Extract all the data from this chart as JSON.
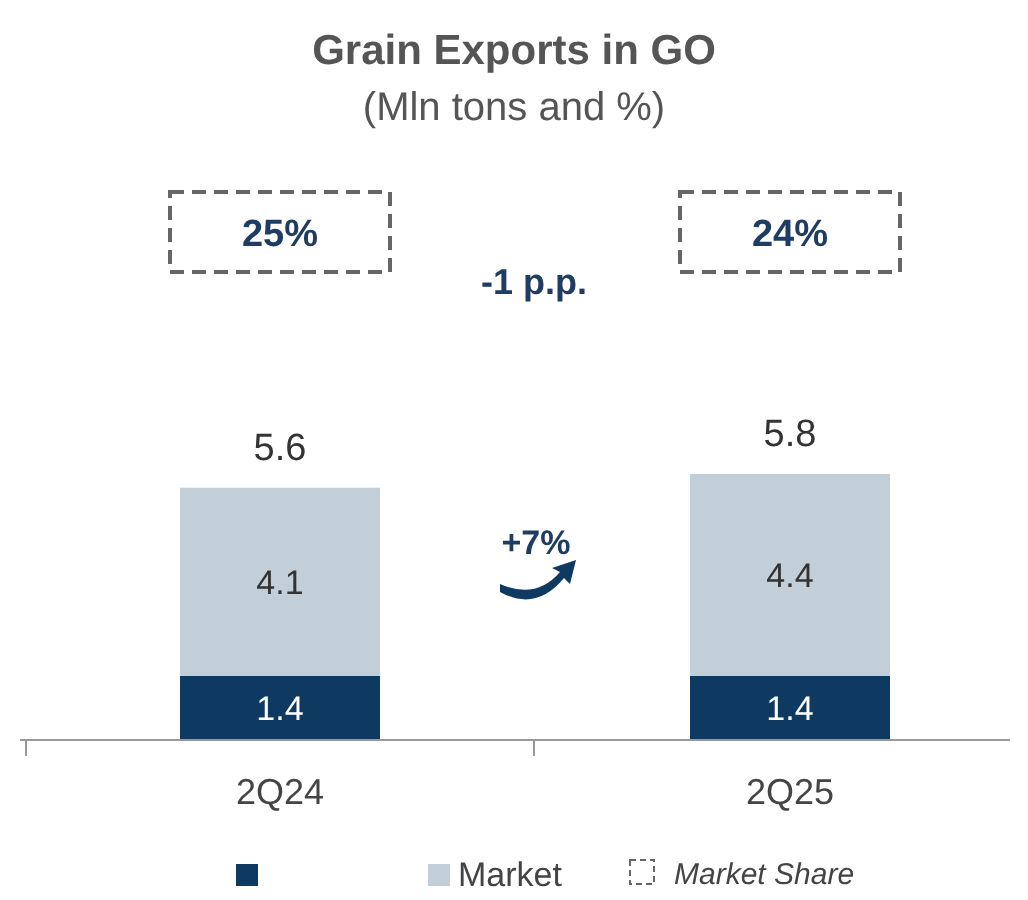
{
  "chart_data": {
    "type": "bar",
    "title": "Grain Exports in GO",
    "subtitle": "(Mln tons and %)",
    "categories": [
      "2Q24",
      "2Q25"
    ],
    "stacked": true,
    "data_labels": true,
    "legend": "bottom",
    "series": [
      {
        "color": "#0e3a62",
        "values": [
          1.4,
          1.4
        ]
      },
      {
        "name": "Market",
        "color": "#c2ced8",
        "values": [
          4.1,
          4.4
        ]
      }
    ],
    "totals": [
      "5.6",
      "5.8"
    ],
    "annotations": [
      "25%",
      "24%",
      "-1 p.p.",
      "+7%",
      "Market Share"
    ]
  }
}
